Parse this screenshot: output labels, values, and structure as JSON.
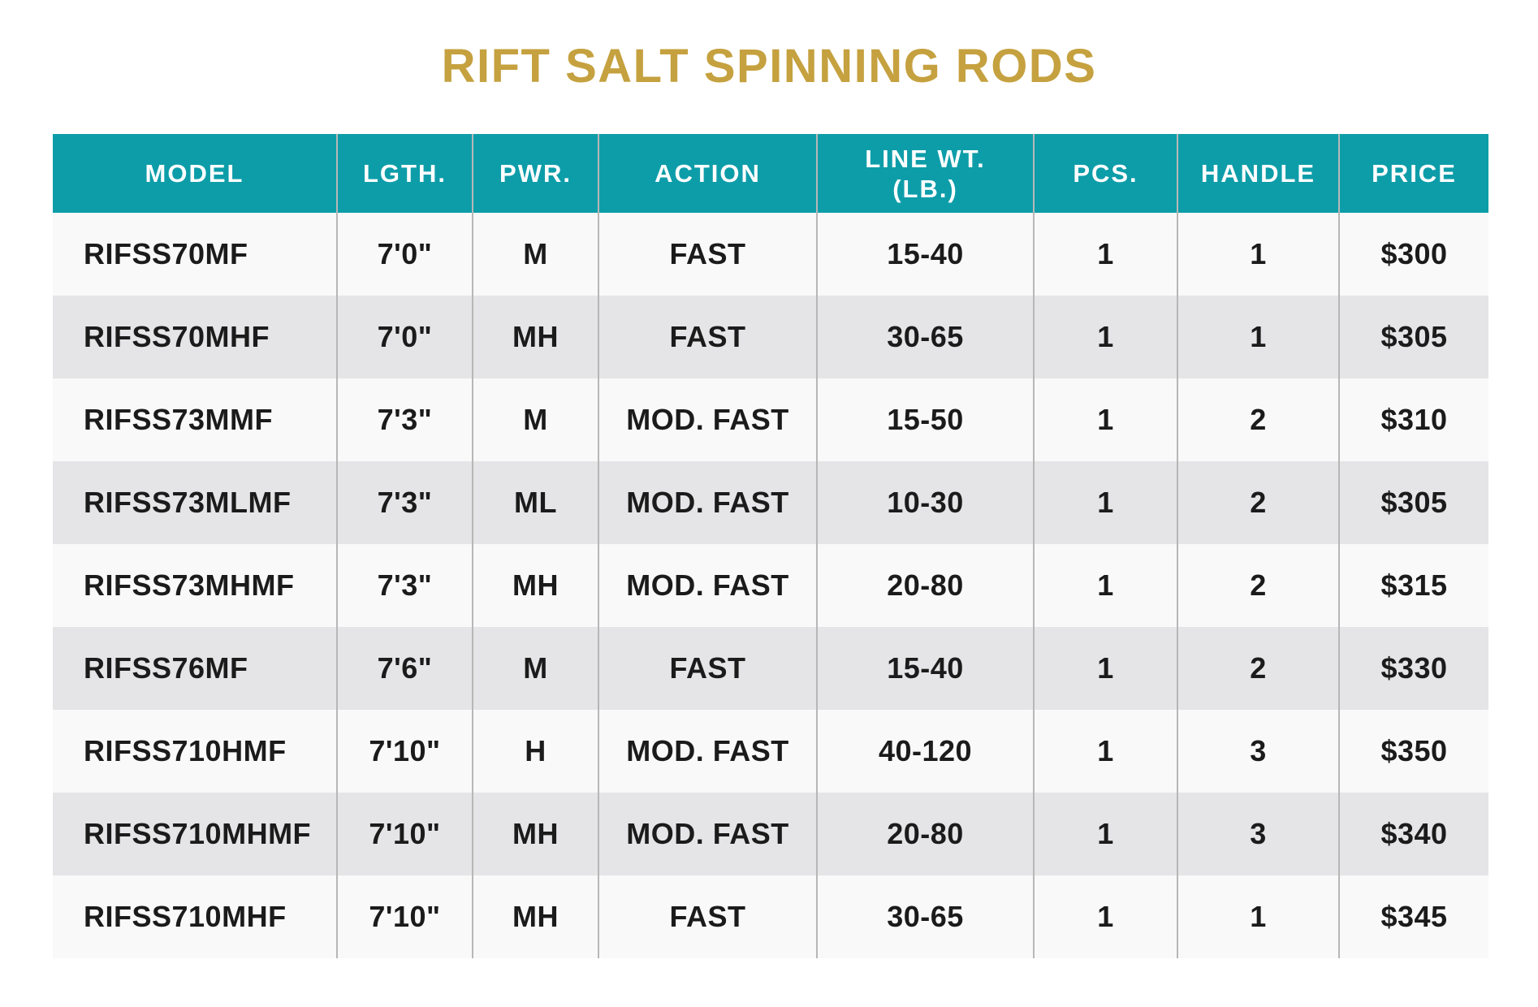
{
  "colors": {
    "title_gold": "#c5a13f",
    "header_teal": "#0d9da9",
    "header_text": "#ffffff",
    "body_text": "#1b1b1b",
    "row_light": "#f9f9f9",
    "row_dark": "#e5e5e7",
    "divider_gray": "#b7b7b7"
  },
  "chart_data": {
    "type": "table",
    "title": "RIFT SALT SPINNING RODS",
    "columns": [
      {
        "key": "model",
        "label": "MODEL"
      },
      {
        "key": "lgth",
        "label": "LGTH."
      },
      {
        "key": "pwr",
        "label": "PWR."
      },
      {
        "key": "action",
        "label": "ACTION"
      },
      {
        "key": "line_wt",
        "label": "LINE WT.",
        "label2": "(LB.)"
      },
      {
        "key": "pcs",
        "label": "PCS."
      },
      {
        "key": "handle",
        "label": "HANDLE"
      },
      {
        "key": "price",
        "label": "PRICE"
      }
    ],
    "rows": [
      [
        "RIFSS70MF",
        "7'0\"",
        "M",
        "FAST",
        "15-40",
        "1",
        "1",
        "$300"
      ],
      [
        "RIFSS70MHF",
        "7'0\"",
        "MH",
        "FAST",
        "30-65",
        "1",
        "1",
        "$305"
      ],
      [
        "RIFSS73MMF",
        "7'3\"",
        "M",
        "MOD. FAST",
        "15-50",
        "1",
        "2",
        "$310"
      ],
      [
        "RIFSS73MLMF",
        "7'3\"",
        "ML",
        "MOD. FAST",
        "10-30",
        "1",
        "2",
        "$305"
      ],
      [
        "RIFSS73MHMF",
        "7'3\"",
        "MH",
        "MOD. FAST",
        "20-80",
        "1",
        "2",
        "$315"
      ],
      [
        "RIFSS76MF",
        "7'6\"",
        "M",
        "FAST",
        "15-40",
        "1",
        "2",
        "$330"
      ],
      [
        "RIFSS710HMF",
        "7'10\"",
        "H",
        "MOD. FAST",
        "40-120",
        "1",
        "3",
        "$350"
      ],
      [
        "RIFSS710MHMF",
        "7'10\"",
        "MH",
        "MOD. FAST",
        "20-80",
        "1",
        "3",
        "$340"
      ],
      [
        "RIFSS710MHF",
        "7'10\"",
        "MH",
        "FAST",
        "30-65",
        "1",
        "1",
        "$345"
      ]
    ]
  }
}
